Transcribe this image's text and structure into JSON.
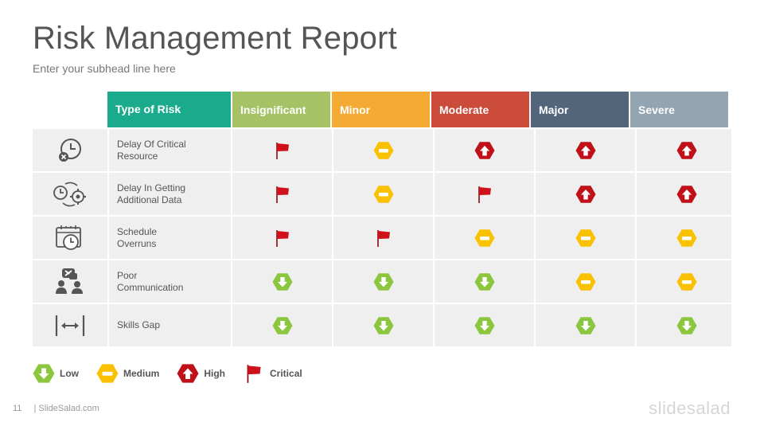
{
  "header": {
    "title": "Risk Management Report",
    "subtitle": "Enter your subhead line here"
  },
  "table": {
    "columns": [
      {
        "label": "Type of Risk",
        "color": "#1aab8d"
      },
      {
        "label": "Insignificant",
        "color": "#a5c265"
      },
      {
        "label": "Minor",
        "color": "#f4aa33"
      },
      {
        "label": "Moderate",
        "color": "#cc4c3b"
      },
      {
        "label": "Major",
        "color": "#53657b"
      },
      {
        "label": "Severe",
        "color": "#93a4b2"
      }
    ],
    "rows": [
      {
        "risk": "Delay Of Critical\nResource",
        "icon": "clock-cancel-icon",
        "levels": [
          "critical",
          "medium",
          "high",
          "high",
          "high"
        ]
      },
      {
        "risk": "Delay In Getting\nAdditional Data",
        "icon": "clock-gear-cycle-icon",
        "levels": [
          "critical",
          "medium",
          "critical",
          "high",
          "high"
        ]
      },
      {
        "risk": "Schedule\n Overruns",
        "icon": "calendar-clock-icon",
        "levels": [
          "critical",
          "critical",
          "medium",
          "medium",
          "medium"
        ]
      },
      {
        "risk": "Poor\nCommunication",
        "icon": "people-chat-icon",
        "levels": [
          "low",
          "low",
          "low",
          "medium",
          "medium"
        ]
      },
      {
        "risk": "Skills Gap",
        "icon": "width-gap-icon",
        "levels": [
          "low",
          "low",
          "low",
          "low",
          "low"
        ]
      }
    ]
  },
  "legend": {
    "low": "Low",
    "medium": "Medium",
    "high": "High",
    "critical": "Critical"
  },
  "colors": {
    "low": "#8cc63f",
    "medium": "#f9c100",
    "high": "#c0101a",
    "critical": "#d0101a"
  },
  "footer": {
    "page_number": "11",
    "site": "| SlideSalad.com",
    "brand": "slidesalad"
  }
}
